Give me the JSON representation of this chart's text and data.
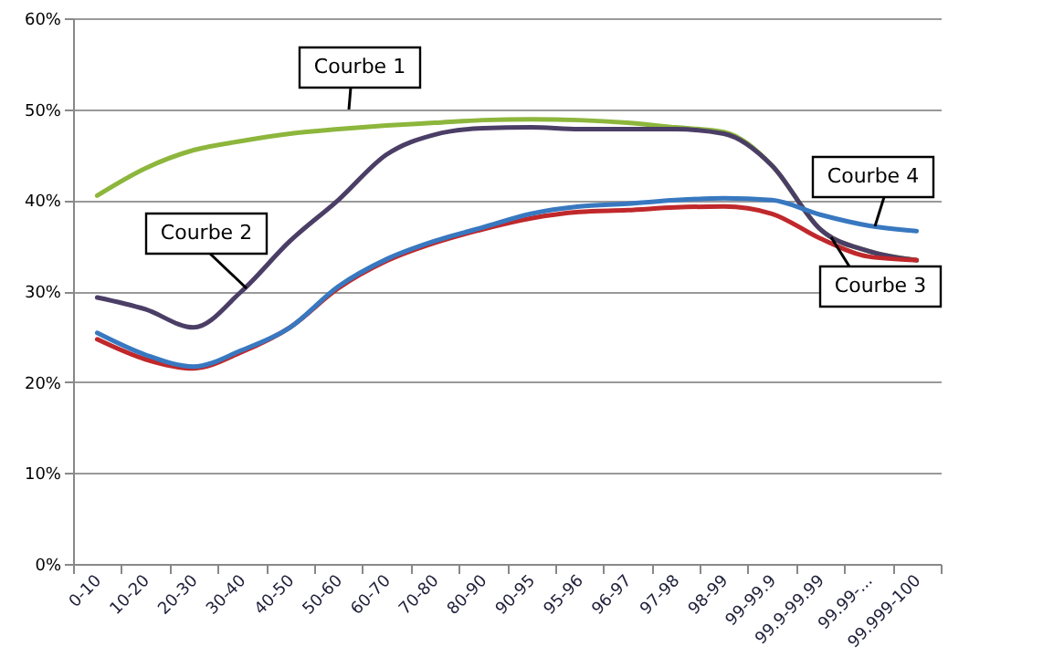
{
  "chart_data": {
    "type": "line",
    "categories": [
      "0-10",
      "10-20",
      "20-30",
      "30-40",
      "40-50",
      "50-60",
      "60-70",
      "70-80",
      "80-90",
      "90-95",
      "95-96",
      "96-97",
      "97-98",
      "98-99",
      "99-99.9",
      "99.9-99.99",
      "99.99-...",
      "99.999-100"
    ],
    "series": [
      {
        "name": "Courbe 1",
        "color": "#8db63c",
        "values": [
          40.5,
          43.5,
          45.5,
          46.5,
          47.3,
          47.8,
          48.2,
          48.5,
          48.8,
          48.9,
          48.8,
          48.5,
          48.0,
          47.5,
          43.8,
          36.8,
          34.4,
          33.4
        ]
      },
      {
        "name": "Courbe 2",
        "color": "#4b3e66",
        "values": [
          29.3,
          28.0,
          26.0,
          30.0,
          35.5,
          40.0,
          45.0,
          47.2,
          47.9,
          48.0,
          47.8,
          47.8,
          47.8,
          47.3,
          43.8,
          36.8,
          34.4,
          33.4
        ]
      },
      {
        "name": "Courbe 3",
        "color": "#c0282b",
        "values": [
          24.7,
          22.5,
          21.5,
          23.3,
          26.0,
          30.3,
          33.3,
          35.3,
          36.8,
          38.0,
          38.7,
          38.9,
          39.2,
          39.3,
          38.5,
          35.8,
          33.8,
          33.4
        ]
      },
      {
        "name": "Courbe 4",
        "color": "#3878c0",
        "values": [
          25.4,
          23.0,
          21.7,
          23.5,
          26.0,
          30.5,
          33.5,
          35.5,
          37.0,
          38.5,
          39.3,
          39.6,
          40.0,
          40.2,
          40.0,
          38.4,
          37.2,
          36.6
        ]
      }
    ],
    "ylim": [
      0,
      60
    ],
    "yticks": [
      {
        "value": 0,
        "label": "0%"
      },
      {
        "value": 10,
        "label": "10%"
      },
      {
        "value": 20,
        "label": "20%"
      },
      {
        "value": 30,
        "label": "30%"
      },
      {
        "value": 40,
        "label": "40%"
      },
      {
        "value": 50,
        "label": "50%"
      },
      {
        "value": 60,
        "label": "60%"
      }
    ],
    "grid": "y",
    "marker": "none",
    "line_style": "solid"
  }
}
